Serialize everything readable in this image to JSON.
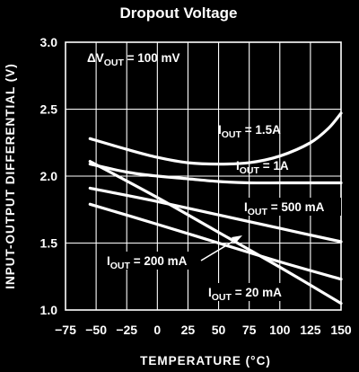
{
  "chart_data": {
    "type": "line",
    "title": "Dropout Voltage",
    "xlabel": "TEMPERATURE (°C)",
    "ylabel": "INPUT-OUTPUT DIFFERENTIAL (V)",
    "xlim": [
      -75,
      150
    ],
    "ylim": [
      1.0,
      3.0
    ],
    "x_ticks": [
      -75,
      -50,
      -25,
      0,
      25,
      50,
      75,
      100,
      125,
      150
    ],
    "y_ticks": [
      "1.0",
      "1.5",
      "2.0",
      "2.5",
      "3.0"
    ],
    "grid": true,
    "condition": {
      "prefix": "ΔV",
      "sub": "OUT",
      "suffix": " = 100 mV"
    },
    "series": [
      {
        "name": "IOUT = 1.5A",
        "label_main": "I",
        "label_sub": "OUT",
        "label_rest": " = 1.5A",
        "x": [
          -55,
          -25,
          0,
          25,
          50,
          75,
          100,
          125,
          140,
          150
        ],
        "y": [
          2.28,
          2.2,
          2.14,
          2.1,
          2.09,
          2.1,
          2.15,
          2.25,
          2.36,
          2.47
        ]
      },
      {
        "name": "IOUT = 1A",
        "label_main": "I",
        "label_sub": "OUT",
        "label_rest": " = 1A",
        "x": [
          -55,
          -25,
          0,
          25,
          50,
          75,
          100,
          125,
          150
        ],
        "y": [
          2.09,
          2.03,
          2.0,
          1.98,
          1.96,
          1.95,
          1.95,
          1.95,
          1.95
        ]
      },
      {
        "name": "IOUT = 500 mA",
        "label_main": "I",
        "label_sub": "OUT",
        "label_rest": " = 500 mA",
        "x": [
          -55,
          0,
          50,
          100,
          150
        ],
        "y": [
          1.91,
          1.81,
          1.71,
          1.61,
          1.51
        ]
      },
      {
        "name": "IOUT = 200 mA",
        "label_main": "I",
        "label_sub": "OUT",
        "label_rest": " = 200 mA",
        "x": [
          -55,
          0,
          50,
          100,
          150
        ],
        "y": [
          1.79,
          1.64,
          1.5,
          1.36,
          1.23
        ]
      },
      {
        "name": "IOUT = 20 mA",
        "label_main": "I",
        "label_sub": "OUT",
        "label_rest": " = 20 mA",
        "x": [
          -55,
          0,
          50,
          100,
          150
        ],
        "y": [
          2.11,
          1.84,
          1.58,
          1.32,
          1.05
        ]
      }
    ]
  }
}
